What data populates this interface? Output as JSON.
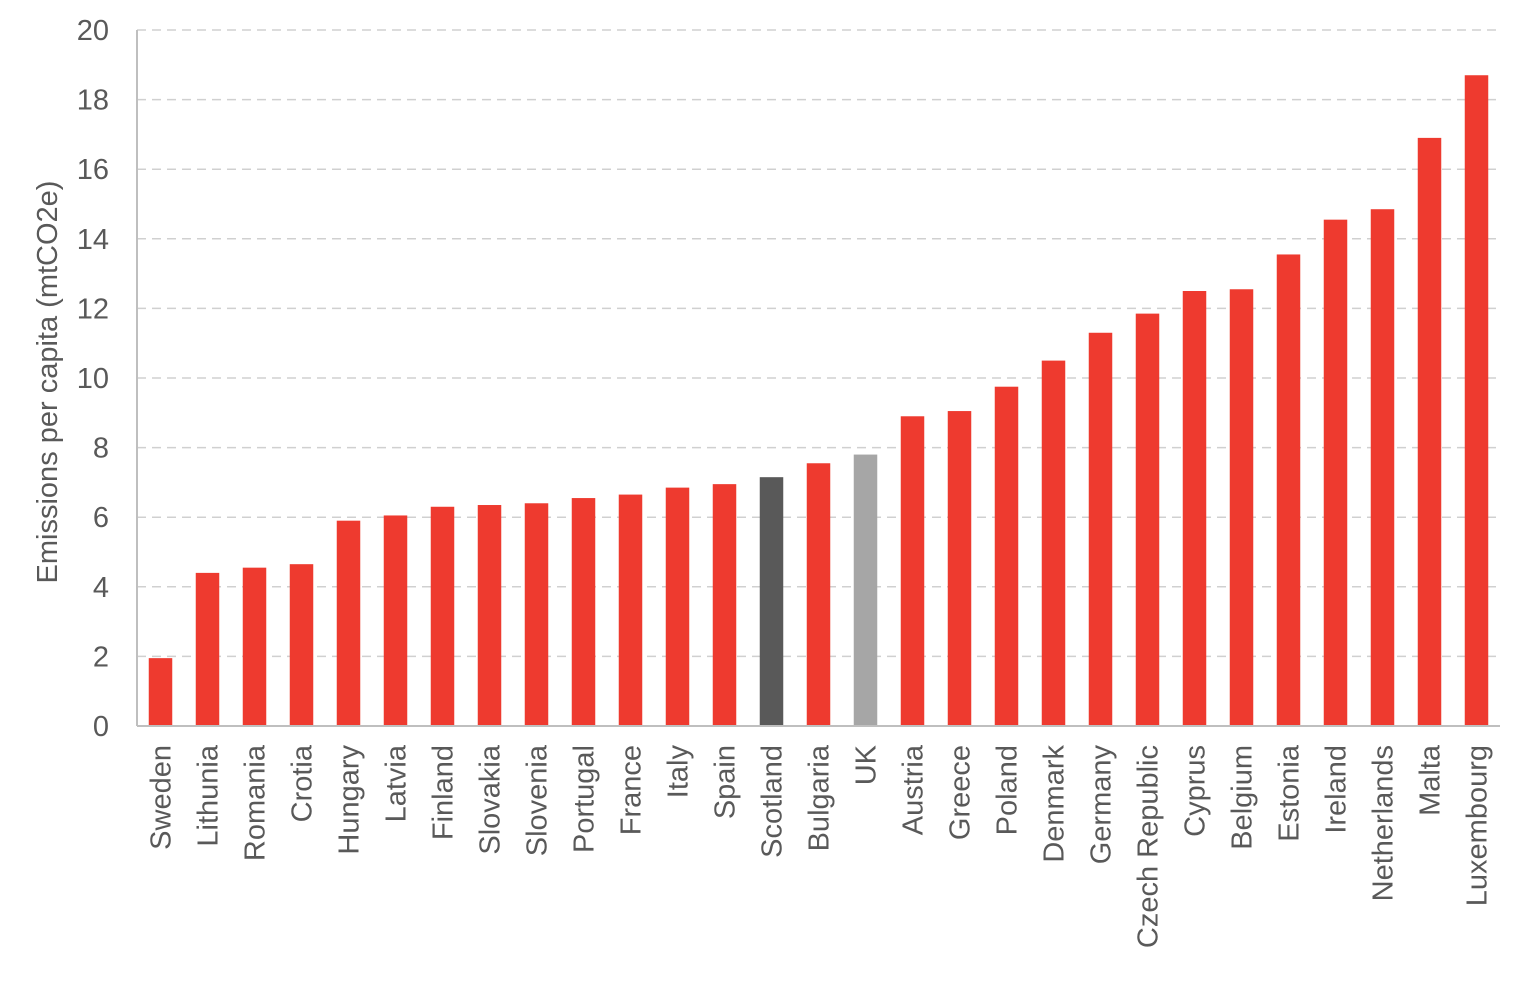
{
  "chart_data": {
    "type": "bar",
    "title": "",
    "xlabel": "",
    "ylabel": "Emissions per capita (mtCO2e)",
    "ylim": [
      0,
      20
    ],
    "yticks": [
      0,
      2,
      4,
      6,
      8,
      10,
      12,
      14,
      16,
      18,
      20
    ],
    "grid": true,
    "legend": "none",
    "categories": [
      "Sweden",
      "Lithunia",
      "Romania",
      "Crotia",
      "Hungary",
      "Latvia",
      "Finland",
      "Slovakia",
      "Slovenia",
      "Portugal",
      "France",
      "Italy",
      "Spain",
      "Scotland",
      "Bulgaria",
      "UK",
      "Austria",
      "Greece",
      "Poland",
      "Denmark",
      "Germany",
      "Czech Republic",
      "Cyprus",
      "Belgium",
      "Estonia",
      "Ireland",
      "Netherlands",
      "Malta",
      "Luxembourg"
    ],
    "values": [
      1.95,
      4.4,
      4.55,
      4.65,
      5.9,
      6.05,
      6.3,
      6.35,
      6.4,
      6.55,
      6.65,
      6.85,
      6.95,
      7.15,
      7.55,
      7.8,
      8.9,
      9.05,
      9.75,
      10.5,
      11.3,
      11.85,
      12.5,
      12.55,
      13.55,
      14.55,
      14.85,
      16.9,
      18.7
    ],
    "colors": {
      "default": "#ee3a2f",
      "Scotland": "#595959",
      "UK": "#a6a6a6"
    }
  }
}
